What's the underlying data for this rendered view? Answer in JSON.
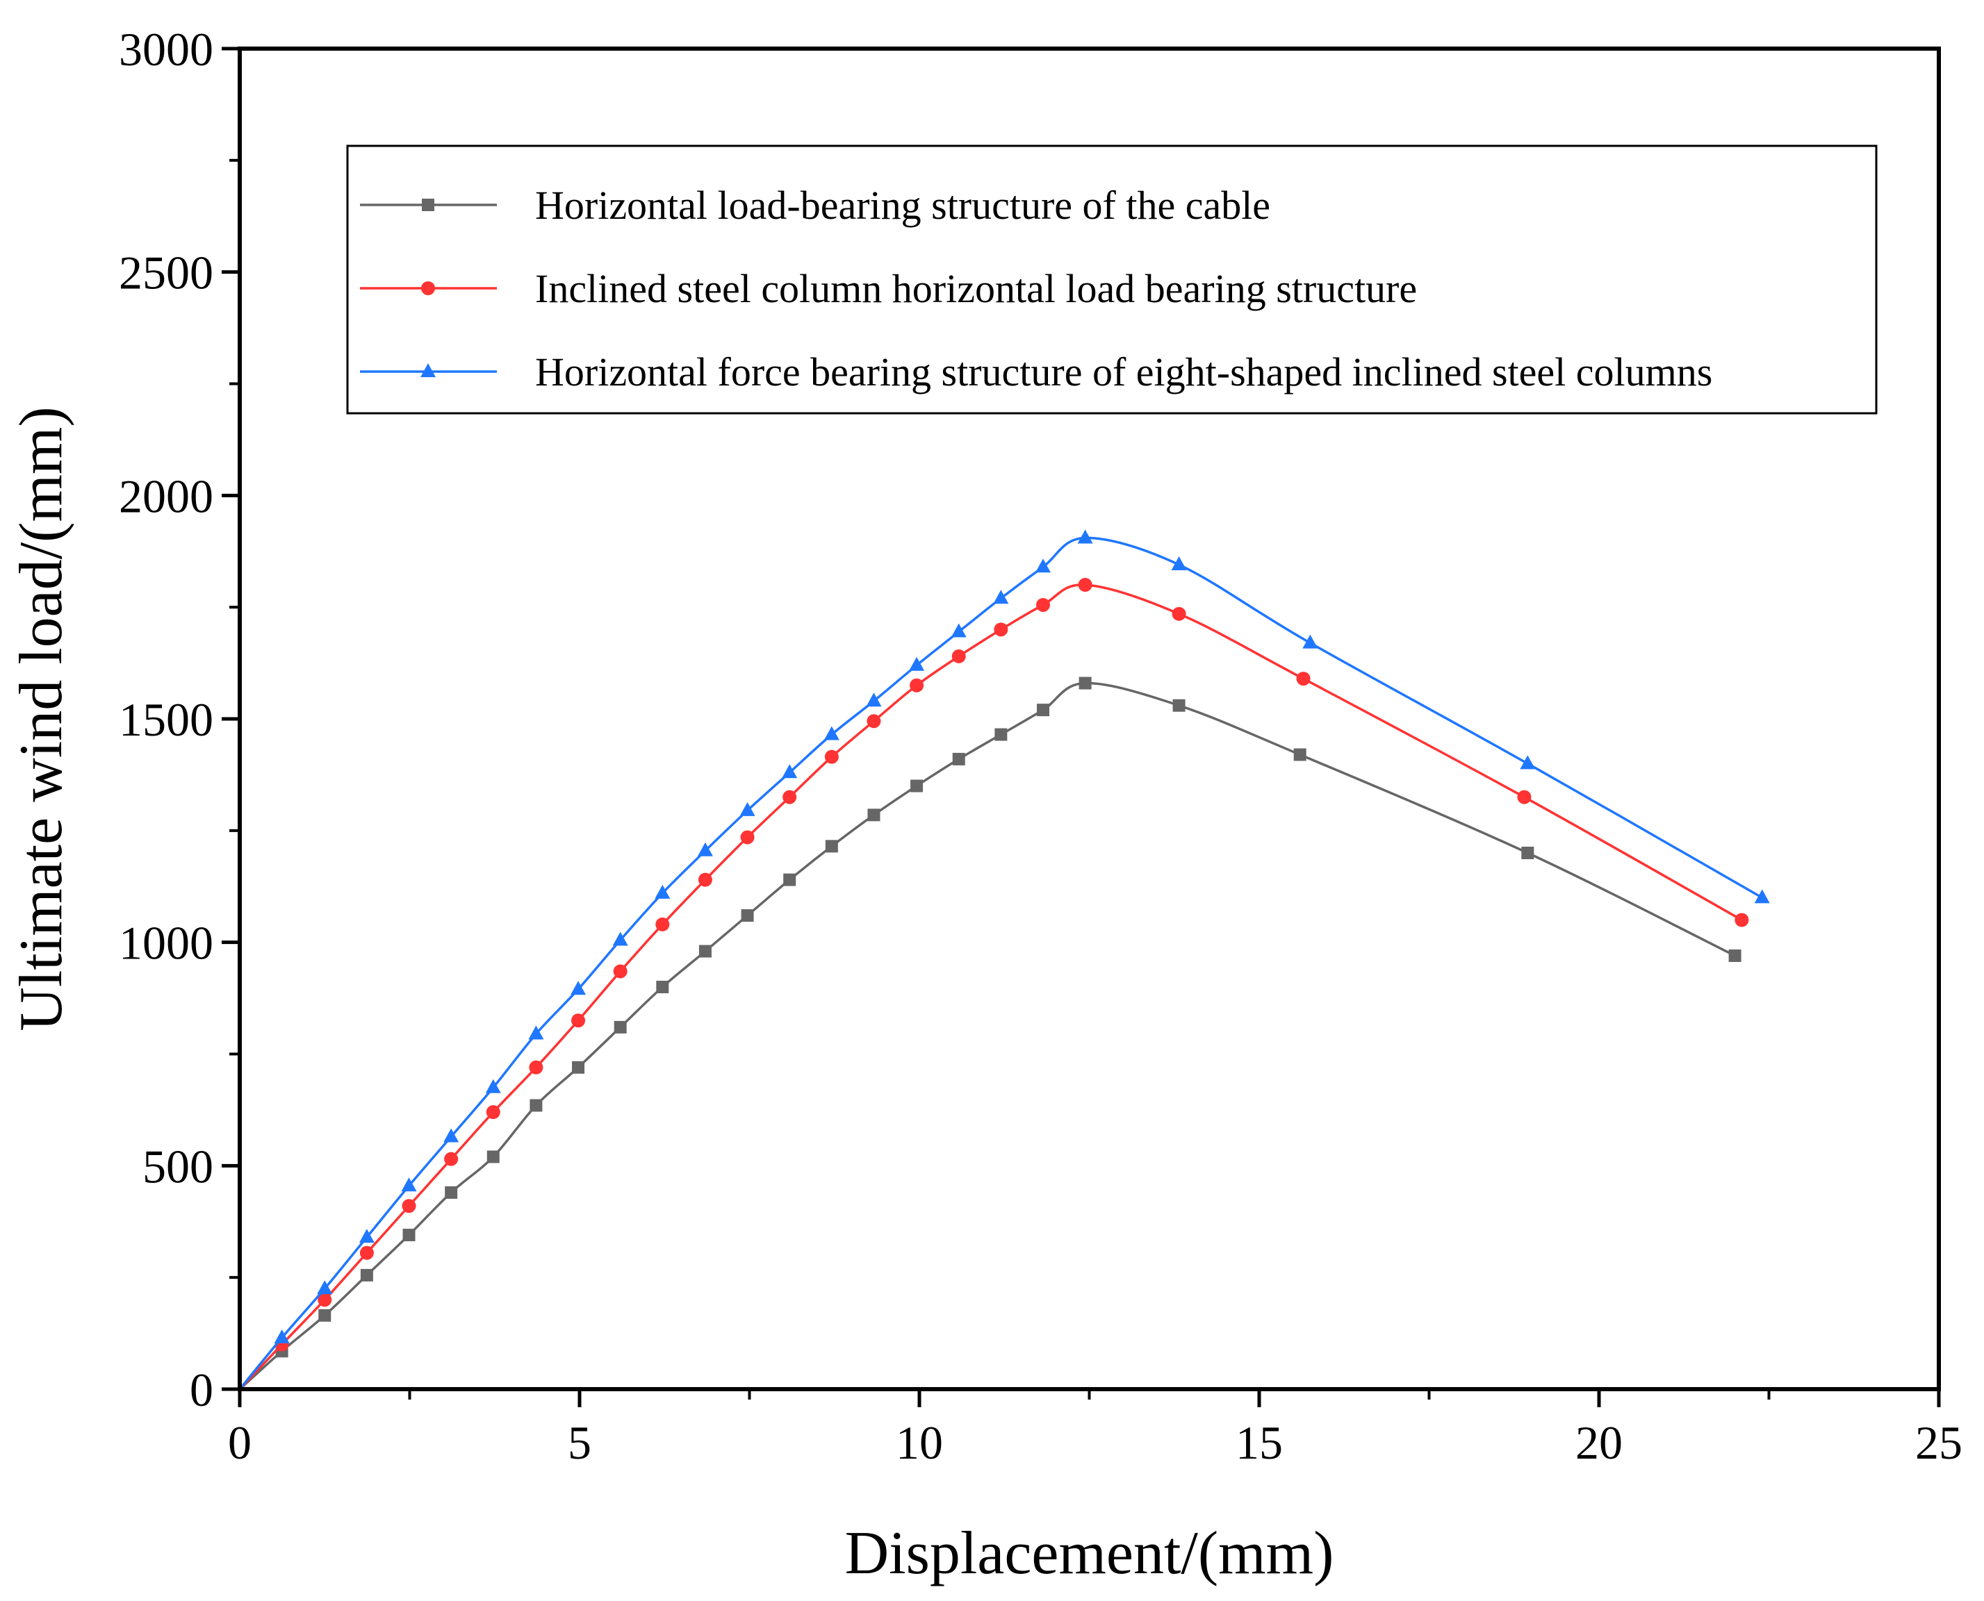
{
  "chart_data": {
    "type": "line",
    "title": "",
    "xlabel": "Displacement/(mm)",
    "ylabel": "Ultimate wind load/(mm)",
    "xlim": [
      0,
      25
    ],
    "ylim": [
      0,
      3000
    ],
    "xticks": [
      0,
      5,
      10,
      15,
      20,
      25
    ],
    "yticks": [
      0,
      500,
      1000,
      1500,
      2000,
      2500,
      3000
    ],
    "grid": false,
    "legend_position": "top-right",
    "series": [
      {
        "name": "Horizontal load-bearing structure of the cable",
        "color": "#666666",
        "marker": "square",
        "x": [
          0,
          0.62,
          1.25,
          1.87,
          2.49,
          3.11,
          3.73,
          4.36,
          4.98,
          5.6,
          6.22,
          6.85,
          7.47,
          8.09,
          8.71,
          9.33,
          9.96,
          10.58,
          11.2,
          11.82,
          12.44,
          13.82,
          15.6,
          18.95,
          22.0
        ],
        "y": [
          0,
          85,
          165,
          255,
          345,
          440,
          520,
          635,
          720,
          810,
          900,
          980,
          1060,
          1140,
          1215,
          1285,
          1350,
          1410,
          1465,
          1520,
          1580,
          1530,
          1420,
          1200,
          970
        ]
      },
      {
        "name": "Inclined steel column horizontal load bearing structure",
        "color": "#ff3333",
        "marker": "circle",
        "x": [
          0,
          0.62,
          1.25,
          1.87,
          2.49,
          3.11,
          3.73,
          4.36,
          4.98,
          5.6,
          6.22,
          6.85,
          7.47,
          8.09,
          8.71,
          9.33,
          9.96,
          10.58,
          11.2,
          11.82,
          12.44,
          13.82,
          15.65,
          18.9,
          22.1
        ],
        "y": [
          0,
          100,
          200,
          305,
          410,
          515,
          620,
          720,
          825,
          935,
          1040,
          1140,
          1235,
          1325,
          1415,
          1495,
          1575,
          1640,
          1700,
          1755,
          1800,
          1735,
          1590,
          1325,
          1050
        ]
      },
      {
        "name": "Horizontal force bearing structure of eight-shaped inclined steel columns",
        "color": "#1f77ff",
        "marker": "triangle",
        "x": [
          0,
          0.62,
          1.25,
          1.87,
          2.49,
          3.11,
          3.73,
          4.36,
          4.98,
          5.6,
          6.22,
          6.85,
          7.47,
          8.09,
          8.71,
          9.33,
          9.96,
          10.58,
          11.2,
          11.82,
          12.44,
          13.82,
          15.75,
          18.95,
          22.4
        ],
        "y": [
          0,
          115,
          225,
          340,
          455,
          565,
          675,
          795,
          895,
          1005,
          1110,
          1205,
          1295,
          1380,
          1465,
          1540,
          1620,
          1695,
          1770,
          1840,
          1905,
          1845,
          1670,
          1400,
          1100
        ]
      }
    ]
  }
}
